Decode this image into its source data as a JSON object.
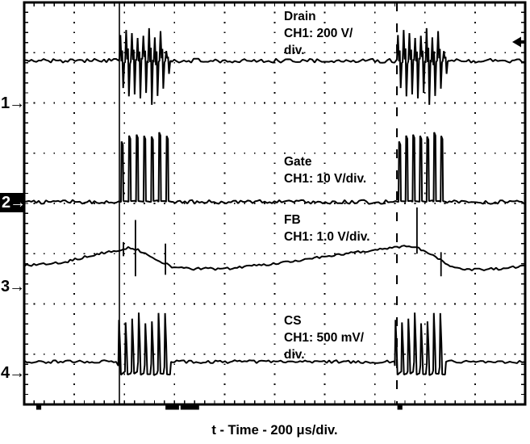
{
  "figure": {
    "channel_labels": {
      "drain": {
        "line1": "Drain",
        "line2": "CH1: 200 V/",
        "line3": "div."
      },
      "gate": {
        "line1": "Gate",
        "line2": "CH1: 10 V/div."
      },
      "fb": {
        "line1": "FB",
        "line2": "CH1: 1.0 V/div."
      },
      "cs": {
        "line1": "CS",
        "line2": "CH1: 500 mV/",
        "line3": "div."
      }
    },
    "channel_markers": {
      "ch1": "1→",
      "ch2": "2→",
      "ch3": "3→",
      "ch4": "4→"
    },
    "time_axis_label": "t - Time - 200 μs/div.",
    "colors": {
      "trace": "#000000",
      "background": "#ffffff"
    }
  },
  "chart_data": {
    "type": "line",
    "xlabel": "t - Time - 200 μs/div.",
    "time_per_div": "200 μs/div.",
    "x_divisions": 10,
    "y_divisions": 8,
    "grid": "dotted",
    "legend_position": "in-plot text labels",
    "cursors": {
      "solid_x_div": 1.9,
      "dashed_x_div": 7.44
    },
    "trigger_arrow": {
      "edge": "right",
      "y_div": 0.787
    },
    "channel_ground_markers_div": {
      "ch1": 2.0,
      "ch2": 3.98,
      "ch3": 5.65,
      "ch4": 7.37
    },
    "bottom_marks": [
      {
        "x_div": 0.24,
        "w_div": 0.1
      },
      {
        "x_div": 2.82,
        "w_div": 0.27
      },
      {
        "x_div": 3.12,
        "w_div": 0.37
      },
      {
        "x_div": 7.45,
        "w_div": 0.1
      }
    ],
    "series": [
      {
        "name": "Drain",
        "scale": "200 V/div",
        "style": "ringing",
        "baseline_div": 1.16,
        "noise_div": 0.04,
        "cycles": 9,
        "peak_up_div": 0.73,
        "peak_down_div": 0.85,
        "bursts": [
          {
            "start_div": 1.9,
            "end_div": 2.93
          },
          {
            "start_div": 7.44,
            "end_div": 8.47
          }
        ]
      },
      {
        "name": "Gate",
        "scale": "10 V/div",
        "style": "pulses",
        "baseline_div": 3.97,
        "noise_div": 0.04,
        "pulses": 7,
        "pulse_top_div": 2.66,
        "bursts": [
          {
            "start_div": 1.9,
            "end_div": 2.95
          },
          {
            "start_div": 7.44,
            "end_div": 8.42
          }
        ]
      },
      {
        "name": "FB",
        "scale": "1.0 V/div",
        "style": "smooth",
        "noise_div": 0.025,
        "points_div": [
          [
            0,
            5.24
          ],
          [
            0.8,
            5.17
          ],
          [
            1.45,
            5.01
          ],
          [
            1.9,
            4.92
          ],
          [
            2.1,
            4.87
          ],
          [
            2.33,
            4.95
          ],
          [
            2.66,
            5.12
          ],
          [
            2.93,
            5.25
          ],
          [
            3.22,
            5.3
          ],
          [
            4.0,
            5.3
          ],
          [
            5.0,
            5.2
          ],
          [
            6.3,
            5.01
          ],
          [
            7.25,
            4.9
          ],
          [
            7.65,
            4.85
          ],
          [
            7.9,
            4.9
          ],
          [
            8.13,
            5.01
          ],
          [
            8.37,
            5.17
          ],
          [
            8.55,
            5.27
          ],
          [
            8.85,
            5.32
          ],
          [
            9.5,
            5.3
          ],
          [
            10,
            5.24
          ]
        ],
        "spikes_div": [
          {
            "x": 1.98,
            "top": 4.77,
            "bottom": 5.05
          },
          {
            "x": 2.22,
            "top": 4.33,
            "bottom": 5.45
          },
          {
            "x": 2.82,
            "top": 4.8,
            "bottom": 5.42
          },
          {
            "x": 7.84,
            "top": 4.08,
            "bottom": 5.0
          },
          {
            "x": 8.32,
            "top": 4.97,
            "bottom": 5.45
          }
        ]
      },
      {
        "name": "CS",
        "scale": "500 mV/div",
        "style": "cs_pulses",
        "baseline_div": 7.15,
        "noise_div": 0.03,
        "pulses": 8,
        "pulse_top_div": 6.28,
        "floor_div": 7.38,
        "bursts": [
          {
            "start_div": 1.88,
            "end_div": 2.93
          },
          {
            "start_div": 7.4,
            "end_div": 8.42
          }
        ]
      }
    ]
  }
}
